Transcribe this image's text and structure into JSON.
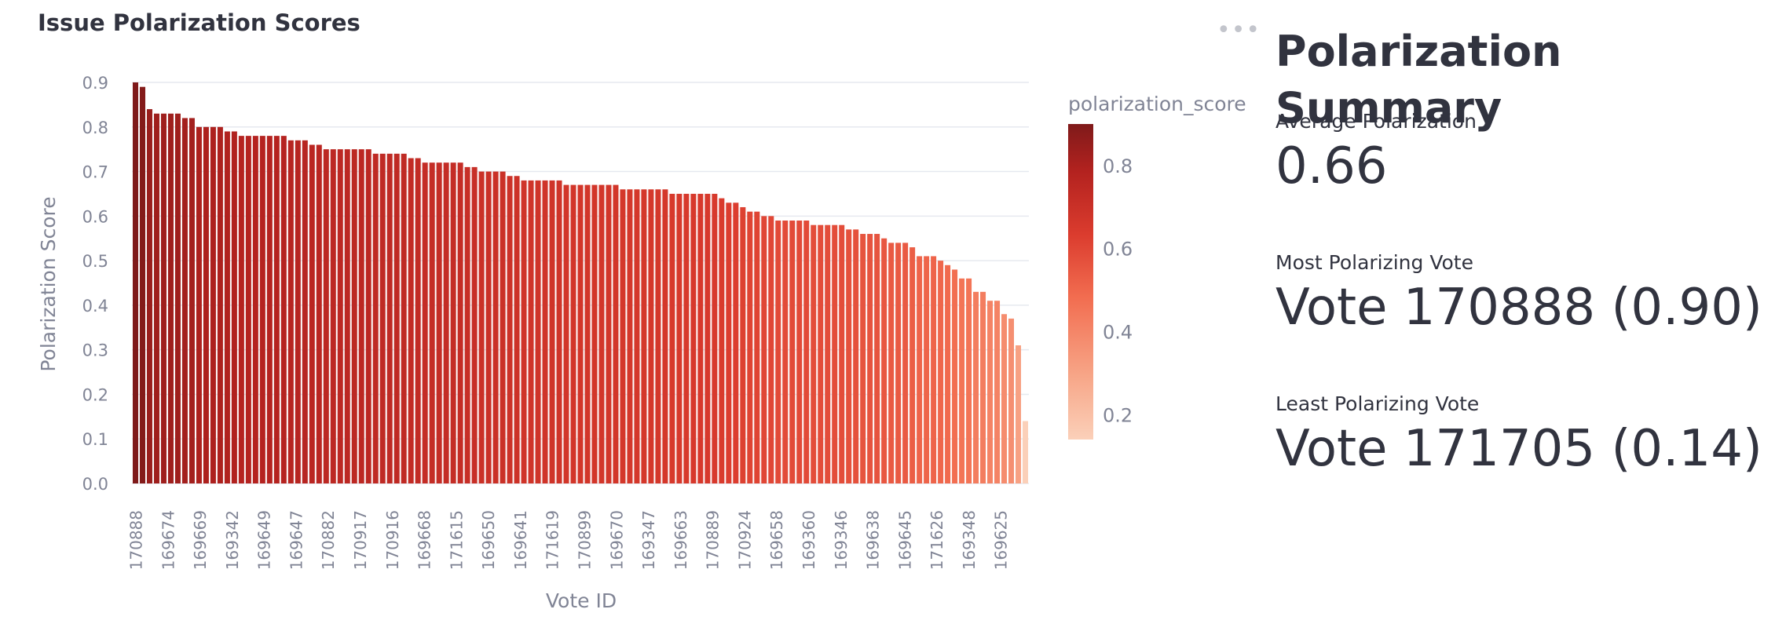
{
  "chart_title": "Issue Polarization Scores",
  "menu_icon": "more-dots-icon",
  "chart_data": {
    "type": "bar",
    "xlabel": "Vote ID",
    "ylabel": "Polarization Score",
    "ylim": [
      0,
      0.9
    ],
    "yticks": [
      0.0,
      0.1,
      0.2,
      0.3,
      0.4,
      0.5,
      0.6,
      0.7,
      0.8,
      0.9
    ],
    "ytick_labels": [
      "0.0",
      "0.1",
      "0.2",
      "0.3",
      "0.4",
      "0.5",
      "0.6",
      "0.7",
      "0.8",
      "0.9"
    ],
    "xtick_labels": [
      "170888",
      "169674",
      "169669",
      "169342",
      "169649",
      "169647",
      "170882",
      "170917",
      "170916",
      "169668",
      "171615",
      "169650",
      "169641",
      "171619",
      "170899",
      "169670",
      "169347",
      "169663",
      "170889",
      "170924",
      "169658",
      "169360",
      "169346",
      "169638",
      "169645",
      "171626",
      "169348",
      "169625"
    ],
    "grid": true,
    "color_legend_title": "polarization_score",
    "color_legend_ticks": [
      "0.8",
      "0.6",
      "0.4",
      "0.2"
    ],
    "color_scale": [
      "#fbd0b9",
      "#f7a688",
      "#f26d50",
      "#db3c2e",
      "#b3221f",
      "#7f1a1a"
    ],
    "values": [
      0.9,
      0.89,
      0.84,
      0.83,
      0.83,
      0.83,
      0.83,
      0.82,
      0.82,
      0.8,
      0.8,
      0.8,
      0.8,
      0.79,
      0.79,
      0.78,
      0.78,
      0.78,
      0.78,
      0.78,
      0.78,
      0.78,
      0.77,
      0.77,
      0.77,
      0.76,
      0.76,
      0.75,
      0.75,
      0.75,
      0.75,
      0.75,
      0.75,
      0.75,
      0.74,
      0.74,
      0.74,
      0.74,
      0.74,
      0.73,
      0.73,
      0.72,
      0.72,
      0.72,
      0.72,
      0.72,
      0.72,
      0.71,
      0.71,
      0.7,
      0.7,
      0.7,
      0.7,
      0.69,
      0.69,
      0.68,
      0.68,
      0.68,
      0.68,
      0.68,
      0.68,
      0.67,
      0.67,
      0.67,
      0.67,
      0.67,
      0.67,
      0.67,
      0.67,
      0.66,
      0.66,
      0.66,
      0.66,
      0.66,
      0.66,
      0.66,
      0.65,
      0.65,
      0.65,
      0.65,
      0.65,
      0.65,
      0.65,
      0.64,
      0.63,
      0.63,
      0.62,
      0.61,
      0.61,
      0.6,
      0.6,
      0.59,
      0.59,
      0.59,
      0.59,
      0.59,
      0.58,
      0.58,
      0.58,
      0.58,
      0.58,
      0.57,
      0.57,
      0.56,
      0.56,
      0.56,
      0.55,
      0.54,
      0.54,
      0.54,
      0.53,
      0.51,
      0.51,
      0.51,
      0.5,
      0.49,
      0.48,
      0.46,
      0.46,
      0.43,
      0.43,
      0.41,
      0.41,
      0.38,
      0.37,
      0.31,
      0.14
    ]
  },
  "summary": {
    "heading": "Polarization Summary",
    "metrics": [
      {
        "label": "Average Polarization",
        "value": "0.66"
      },
      {
        "label": "Most Polarizing Vote",
        "value": "Vote 170888 (0.90)"
      },
      {
        "label": "Least Polarizing Vote",
        "value": "Vote 171705 (0.14)"
      }
    ]
  }
}
